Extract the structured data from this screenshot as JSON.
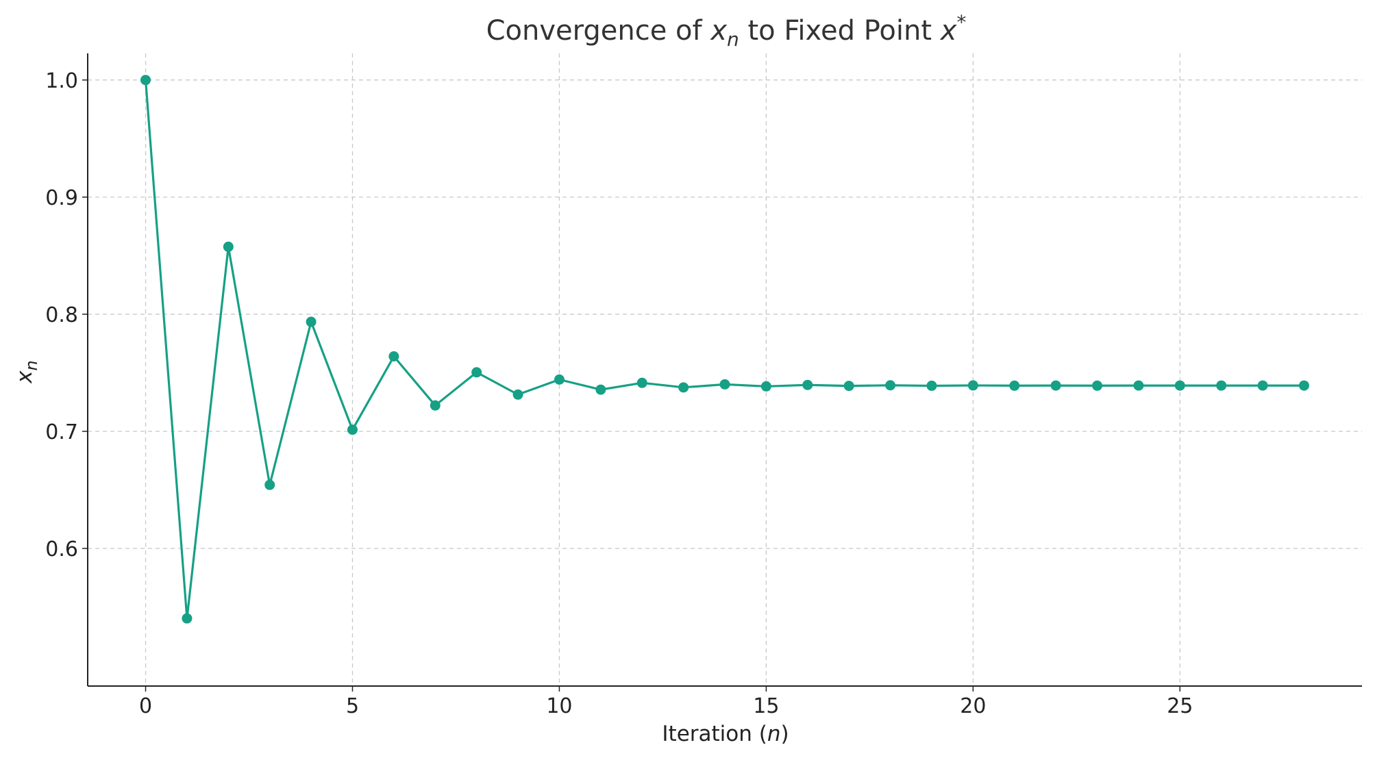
{
  "chart_data": {
    "type": "line",
    "title": {
      "prefix": "Convergence of ",
      "var": "x",
      "sub": "n",
      "middle": " to Fixed Point ",
      "var2": "x",
      "sup": "*"
    },
    "xlabel": {
      "prefix": "Iteration (",
      "var": "n",
      "suffix": ")"
    },
    "ylabel": {
      "var": "x",
      "sub": "n"
    },
    "xlim": [
      -1.4,
      29.4
    ],
    "ylim": [
      0.4825,
      1.0227
    ],
    "xticks": [
      0,
      5,
      10,
      15,
      20,
      25
    ],
    "yticks": [
      0.6,
      0.7,
      0.8,
      0.9,
      1.0
    ],
    "ytick_labels": [
      "0.6",
      "0.7",
      "0.8",
      "0.9",
      "1.0"
    ],
    "xtick_labels": [
      "0",
      "5",
      "10",
      "15",
      "20",
      "25"
    ],
    "grid": true,
    "series": [
      {
        "color": "#16a085",
        "marker": "circle",
        "x": [
          0,
          1,
          2,
          3,
          4,
          5,
          6,
          7,
          8,
          9,
          10,
          11,
          12,
          13,
          14,
          15,
          16,
          17,
          18,
          19,
          20,
          21,
          22,
          23,
          24,
          25,
          26,
          27,
          28
        ],
        "y": [
          1.0,
          0.5403,
          0.8576,
          0.6543,
          0.7935,
          0.7014,
          0.764,
          0.7221,
          0.7504,
          0.7314,
          0.7442,
          0.7356,
          0.7414,
          0.7375,
          0.7401,
          0.7384,
          0.7396,
          0.7388,
          0.7393,
          0.7389,
          0.7392,
          0.739,
          0.7391,
          0.739,
          0.7391,
          0.7391,
          0.7391,
          0.7391,
          0.7391
        ]
      }
    ]
  }
}
